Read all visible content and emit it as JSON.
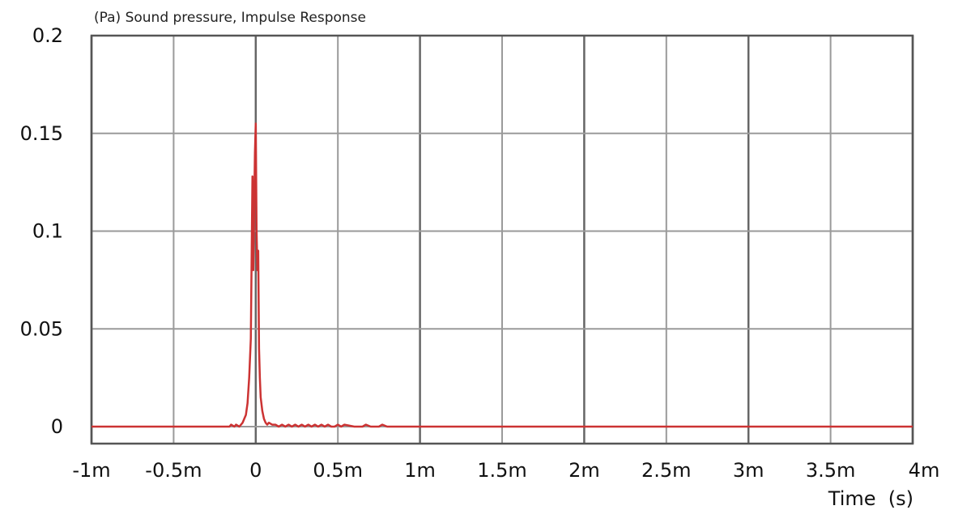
{
  "chart_data": {
    "type": "line",
    "title": "(Pa) Sound pressure, Impulse Response",
    "xlabel": "Time  (s)",
    "ylabel": "",
    "xlim": [
      -0.001,
      0.004
    ],
    "ylim": [
      0,
      0.2
    ],
    "grid": true,
    "x_ticks": [
      {
        "value": -0.001,
        "label": "-1m"
      },
      {
        "value": -0.0005,
        "label": "-0.5m"
      },
      {
        "value": 0,
        "label": "0"
      },
      {
        "value": 0.0005,
        "label": "0.5m"
      },
      {
        "value": 0.001,
        "label": "1m"
      },
      {
        "value": 0.0015,
        "label": "1.5m"
      },
      {
        "value": 0.002,
        "label": "2m"
      },
      {
        "value": 0.0025,
        "label": "2.5m"
      },
      {
        "value": 0.003,
        "label": "3m"
      },
      {
        "value": 0.0035,
        "label": "3.5m"
      },
      {
        "value": 0.004,
        "label": "4m"
      }
    ],
    "y_ticks": [
      {
        "value": 0.2,
        "label": "0.2"
      },
      {
        "value": 0.15,
        "label": "0.15"
      },
      {
        "value": 0.1,
        "label": "0.1"
      },
      {
        "value": 0.05,
        "label": "0.05"
      },
      {
        "value": 0,
        "label": "0"
      }
    ],
    "colors": {
      "series": "#cc3333",
      "grid_major": "#666666",
      "grid_minor": "#9a9a9a",
      "frame": "#555555"
    },
    "series": [
      {
        "x": [
          -0.001,
          -0.00016,
          -0.00015,
          -0.00013,
          -0.00012,
          -0.0001,
          -8e-05,
          -6e-05,
          -5e-05,
          -4e-05,
          -3e-05,
          -2e-05,
          -1.5e-05,
          -1e-05,
          -5e-06,
          0,
          5e-06,
          1e-05,
          1.5e-05,
          2e-05,
          2.5e-05,
          3e-05,
          4e-05,
          5e-05,
          6e-05,
          7e-05,
          8e-05,
          0.0001,
          0.00012,
          0.00014,
          0.00016,
          0.00018,
          0.0002,
          0.00022,
          0.00024,
          0.00026,
          0.00028,
          0.0003,
          0.00032,
          0.00034,
          0.00036,
          0.00038,
          0.0004,
          0.00042,
          0.00044,
          0.00046,
          0.00048,
          0.0005,
          0.00052,
          0.00054,
          0.0006,
          0.00065,
          0.00067,
          0.0007,
          0.00075,
          0.00077,
          0.0008,
          0.004
        ],
        "y": [
          0,
          0,
          0.001,
          0,
          0.001,
          0,
          0.002,
          0.006,
          0.012,
          0.025,
          0.045,
          0.128,
          0.08,
          0.11,
          0.14,
          0.155,
          0.1,
          0.08,
          0.09,
          0.04,
          0.025,
          0.015,
          0.008,
          0.004,
          0.002,
          0.001,
          0.002,
          0.001,
          0.001,
          0,
          0.001,
          0,
          0.001,
          0,
          0.001,
          0,
          0.001,
          0,
          0.001,
          0,
          0.001,
          0,
          0.001,
          0,
          0.001,
          0,
          0,
          0.001,
          0,
          0.001,
          0,
          0,
          0.001,
          0,
          0,
          0.001,
          0,
          0
        ]
      }
    ]
  }
}
